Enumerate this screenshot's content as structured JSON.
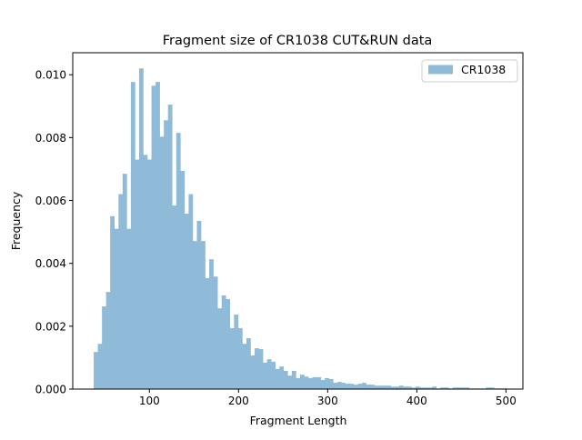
{
  "chart_data": {
    "type": "bar",
    "subtype": "histogram",
    "title": "Fragment size of CR1038 CUT&RUN data",
    "xlabel": "Fragment Length",
    "ylabel": "Frequency",
    "xlim": [
      14,
      519
    ],
    "ylim": [
      0,
      0.0107
    ],
    "xticks": [
      100,
      200,
      300,
      400,
      500
    ],
    "xtick_labels": [
      "100",
      "200",
      "300",
      "400",
      "500"
    ],
    "yticks": [
      0,
      0.002,
      0.004,
      0.006,
      0.008,
      0.01
    ],
    "ytick_labels": [
      "0.000",
      "0.002",
      "0.004",
      "0.006",
      "0.008",
      "0.010"
    ],
    "grid": false,
    "legend_position": "top-right",
    "bin_start": 37.5,
    "bin_width": 4.63,
    "series": [
      {
        "name": "CR1038",
        "color": "#8fbad8",
        "values": [
          0.00118,
          0.00144,
          0.00263,
          0.00309,
          0.0055,
          0.0051,
          0.0062,
          0.00685,
          0.0051,
          0.00977,
          0.0073,
          0.0102,
          0.00745,
          0.0073,
          0.00965,
          0.00977,
          0.00803,
          0.00855,
          0.00905,
          0.00584,
          0.00815,
          0.00694,
          0.00558,
          0.0062,
          0.00471,
          0.00535,
          0.00471,
          0.00353,
          0.00413,
          0.00358,
          0.00257,
          0.00298,
          0.00286,
          0.00194,
          0.00237,
          0.00194,
          0.00144,
          0.00162,
          0.00107,
          0.0013,
          0.00127,
          0.00084,
          0.00095,
          0.00087,
          0.00064,
          0.00072,
          0.00058,
          0.00043,
          0.00058,
          0.00035,
          0.00046,
          0.0004,
          0.00035,
          0.00038,
          0.00038,
          0.00029,
          0.00035,
          0.00032,
          0.0002,
          0.00023,
          0.0002,
          0.00017,
          0.00017,
          0.00014,
          0.00017,
          0.0002,
          0.00014,
          0.00014,
          0.00011,
          0.00011,
          0.00011,
          0.00011,
          8e-05,
          8e-05,
          0.00011,
          8e-05,
          8e-05,
          5e-05,
          8e-05,
          5e-05,
          5e-05,
          5e-05,
          8e-05,
          2e-05,
          5e-05,
          5e-05,
          2e-05,
          5e-05,
          5e-05,
          5e-05,
          5e-05,
          2e-05,
          2e-05,
          2e-05,
          2e-05,
          5e-05,
          5e-05,
          2e-05,
          2e-05,
          2e-05
        ]
      }
    ]
  }
}
